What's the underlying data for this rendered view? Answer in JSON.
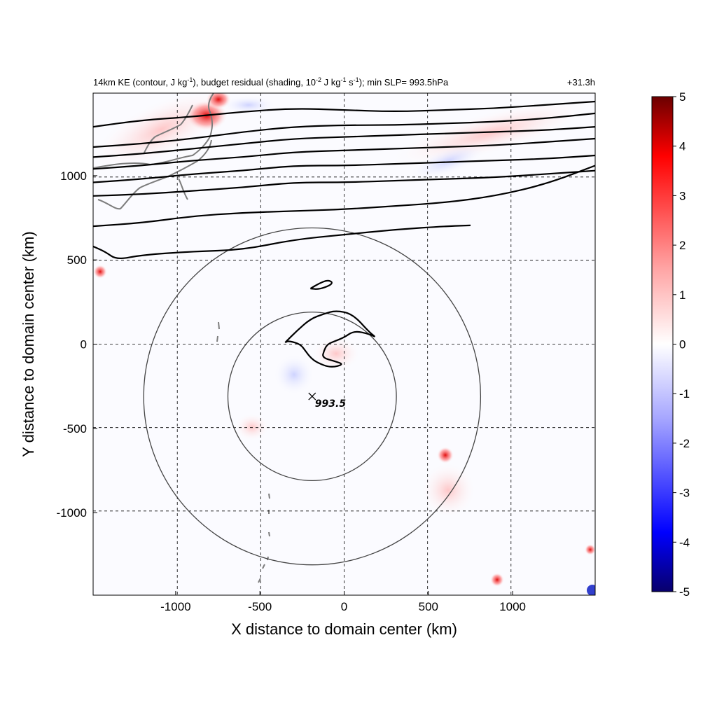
{
  "chart_data": {
    "type": "heatmap",
    "title": {
      "pre": "14km KE (contour, J kg",
      "sup1": "-1",
      "mid1": "), budget residual (shading, 10",
      "sup2": "-2",
      "mid2": " J kg",
      "sup3": "-1",
      "mid3": " s",
      "sup4": "-1",
      "post": "); min SLP= 993.5hPa"
    },
    "time_label": "+31.3h",
    "xlabel": "X distance to domain center (km)",
    "ylabel": "Y distance to domain center (km)",
    "xlim": [
      -1490,
      1490
    ],
    "ylim": [
      -1490,
      1490
    ],
    "xticks": [
      -1000,
      -500,
      0,
      500,
      1000
    ],
    "yticks": [
      -1000,
      -500,
      0,
      500,
      1000
    ],
    "grid": true,
    "colorbar": {
      "range": [
        -5,
        5
      ],
      "ticks": [
        5,
        4,
        3,
        2,
        1,
        0,
        -1,
        -2,
        -3,
        -4,
        -5
      ],
      "colormap": [
        "#08006b",
        "#0000ff",
        "#a6a6ff",
        "#ffffff",
        "#ffa6a6",
        "#ff0000",
        "#6b0000"
      ]
    },
    "storm_center": {
      "x": -190,
      "y": -310,
      "label": "993.5"
    },
    "range_circles_km": [
      500,
      1000
    ],
    "ke_contours": [
      {
        "x": [
          -1490,
          -1200,
          -900,
          -600,
          -300,
          0,
          300,
          600,
          900,
          1200,
          1490
        ],
        "y": [
          1290,
          1330,
          1350,
          1380,
          1400,
          1390,
          1380,
          1390,
          1400,
          1420,
          1440
        ]
      },
      {
        "x": [
          -1490,
          -1200,
          -900,
          -600,
          -300,
          0,
          300,
          600,
          900,
          1200,
          1490
        ],
        "y": [
          1170,
          1190,
          1220,
          1260,
          1290,
          1300,
          1300,
          1310,
          1320,
          1340,
          1370
        ]
      },
      {
        "x": [
          -1490,
          -1200,
          -900,
          -600,
          -300,
          0,
          300,
          600,
          900,
          1200,
          1490
        ],
        "y": [
          1110,
          1130,
          1160,
          1190,
          1220,
          1230,
          1240,
          1250,
          1260,
          1270,
          1290
        ]
      },
      {
        "x": [
          -1490,
          -1200,
          -900,
          -600,
          -300,
          0,
          300,
          600,
          900,
          1200,
          1490
        ],
        "y": [
          1040,
          1060,
          1090,
          1110,
          1140,
          1150,
          1160,
          1170,
          1180,
          1200,
          1220
        ]
      },
      {
        "x": [
          -1490,
          -1200,
          -900,
          -600,
          -300,
          0,
          300,
          600,
          900,
          1200,
          1490
        ],
        "y": [
          960,
          980,
          1010,
          1030,
          1060,
          1060,
          1070,
          1080,
          1090,
          1100,
          1120
        ]
      },
      {
        "x": [
          -1490,
          -1200,
          -900,
          -600,
          -300,
          0,
          300,
          600,
          900,
          1200,
          1490
        ],
        "y": [
          880,
          890,
          910,
          930,
          960,
          960,
          970,
          980,
          990,
          1010,
          1030
        ]
      },
      {
        "x": [
          -1490,
          -1200,
          -900,
          -600,
          -300,
          0,
          300,
          600,
          900,
          1200,
          1490
        ],
        "y": [
          700,
          720,
          760,
          780,
          790,
          800,
          820,
          840,
          880,
          950,
          1060
        ]
      },
      {
        "x": [
          -1490,
          -1420,
          -1350,
          -1200,
          -900,
          -600,
          -300,
          0,
          300,
          600,
          750
        ],
        "y": [
          580,
          550,
          500,
          530,
          550,
          560,
          620,
          650,
          680,
          700,
          705
        ]
      },
      {
        "x": [
          -200,
          -150,
          -100,
          -70,
          -80,
          -150,
          -200
        ],
        "y": [
          330,
          360,
          380,
          370,
          350,
          325,
          330
        ]
      },
      {
        "x": [
          -350,
          -280,
          -200,
          -120,
          -50,
          50,
          150,
          190,
          150,
          60,
          0,
          -50,
          -100,
          -120,
          -130,
          -60,
          0,
          -80,
          -160,
          -200,
          -230,
          -260,
          -330,
          -350
        ],
        "y": [
          10,
          80,
          150,
          180,
          200,
          180,
          70,
          40,
          60,
          80,
          40,
          20,
          0,
          -40,
          -80,
          -100,
          -120,
          -140,
          -110,
          -80,
          -40,
          0,
          20,
          10
        ]
      }
    ]
  }
}
